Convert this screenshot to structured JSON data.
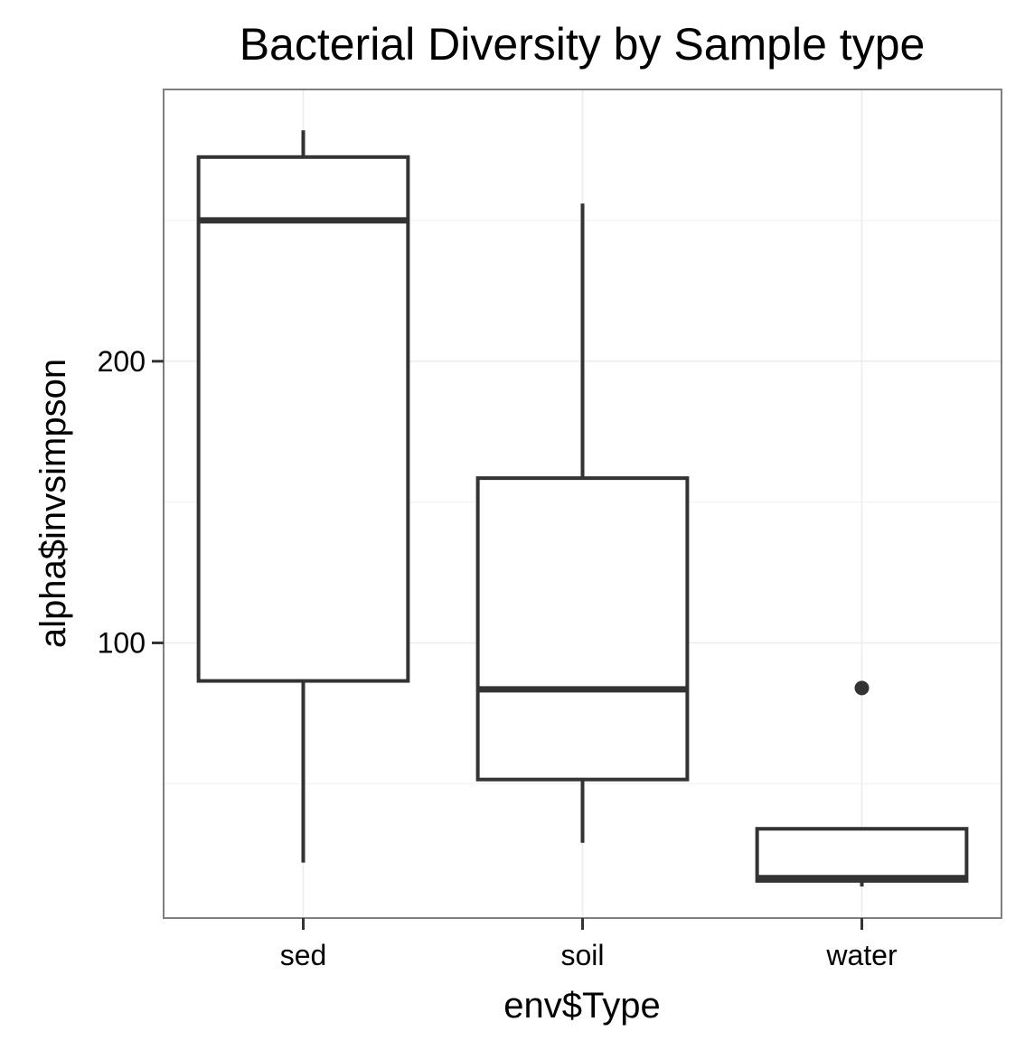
{
  "colors": {
    "box_stroke": "#333333",
    "outlier_fill": "#333333",
    "panel_border": "#7f7f7f",
    "grid": "#ebebeb",
    "tick": "#333333"
  },
  "chart_data": {
    "type": "boxplot",
    "title": "Bacterial Diversity by Sample type",
    "xlabel": "env$Type",
    "ylabel": "alpha$invsimpson",
    "ylim": [
      2.3,
      296.5
    ],
    "y_ticks": [
      100,
      200
    ],
    "grid": true,
    "categories": [
      "sed",
      "soil",
      "water"
    ],
    "boxes": [
      {
        "category": "sed",
        "lower_whisker": 22,
        "q1": 86.5,
        "median": 250,
        "q3": 272.5,
        "upper_whisker": 282,
        "outliers": []
      },
      {
        "category": "soil",
        "lower_whisker": 29,
        "q1": 51.5,
        "median": 83.5,
        "q3": 158.5,
        "upper_whisker": 256,
        "outliers": []
      },
      {
        "category": "water",
        "lower_whisker": 13.5,
        "q1": 15.5,
        "median": 16.5,
        "q3": 34,
        "upper_whisker": 34,
        "outliers": [
          84
        ]
      }
    ]
  }
}
